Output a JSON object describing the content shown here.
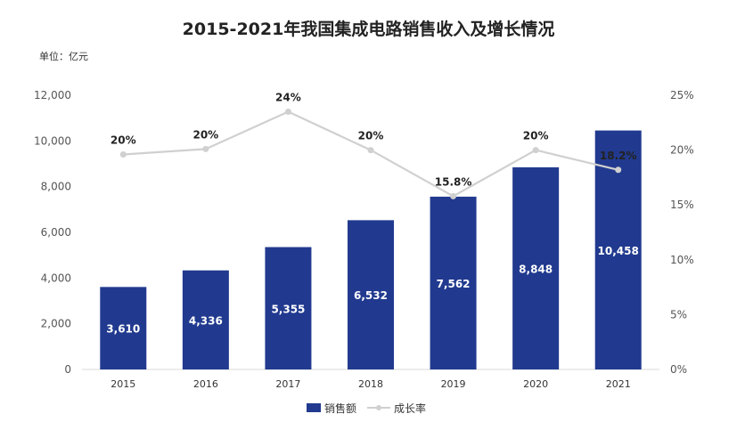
{
  "chart_data": {
    "type": "bar+line",
    "title": "2015-2021年我国集成电路销售收入及增长情况",
    "unit_label": "单位：亿元",
    "categories": [
      "2015",
      "2016",
      "2017",
      "2018",
      "2019",
      "2020",
      "2021"
    ],
    "series": [
      {
        "name": "销售额",
        "type": "bar",
        "axis": "left",
        "values": [
          3610,
          4336,
          5355,
          6532,
          7562,
          8848,
          10458
        ],
        "labels": [
          "3,610",
          "4,336",
          "5,355",
          "6,532",
          "7,562",
          "8,848",
          "10,458"
        ]
      },
      {
        "name": "成长率",
        "type": "line",
        "axis": "right",
        "values": [
          19.6,
          20.1,
          23.5,
          20.0,
          15.8,
          20.0,
          18.2
        ],
        "labels": [
          "20%",
          "20%",
          "24%",
          "20%",
          "15.8%",
          "20%",
          "18.2%"
        ]
      }
    ],
    "left_axis": {
      "ylim": [
        0,
        12000
      ],
      "ticks": [
        "0",
        "2,000",
        "4,000",
        "6,000",
        "8,000",
        "10,000",
        "12,000"
      ]
    },
    "right_axis": {
      "ylim": [
        0,
        25
      ],
      "ticks": [
        "0%",
        "5%",
        "10%",
        "15%",
        "20%",
        "25%"
      ]
    },
    "legend": {
      "position": "bottom"
    },
    "grid": false,
    "colors": {
      "bar": "#213A8F",
      "line": "#D0D0D0"
    }
  }
}
